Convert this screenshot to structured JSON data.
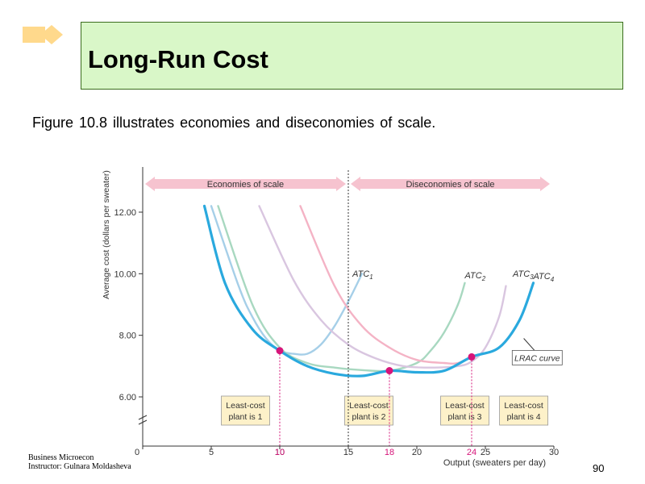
{
  "slide": {
    "title": "Long-Run Cost",
    "subtitle": "Figure 10.8 illustrates economies and diseconomies of scale.",
    "footer_line1": "Business Microecon",
    "footer_line2": "Instructor: Gulnara Moldasheva",
    "page_number": "90",
    "colors": {
      "title_bg": "#d9f7c8",
      "title_border": "#3b6d1e",
      "diamond": "#ffd98c"
    }
  },
  "chart_data": {
    "type": "line",
    "xlabel": "Output (sweaters per day)",
    "ylabel": "Average cost (dollars per sweater)",
    "xlim": [
      0,
      30
    ],
    "ylim": [
      5.5,
      13.5
    ],
    "x_ticks": [
      0,
      5,
      10,
      15,
      20,
      25,
      30
    ],
    "y_ticks": [
      6,
      8,
      10,
      12
    ],
    "y_tick_labels": [
      "6.00",
      "8.00",
      "10.00",
      "12.00"
    ],
    "highlight_x_ticks": [
      "10",
      "18",
      "24"
    ],
    "series": [
      {
        "name": "ATC",
        "sub": "1",
        "color": "#a6cfe8",
        "points": [
          [
            5,
            12.2
          ],
          [
            7,
            9.6
          ],
          [
            8,
            8.6
          ],
          [
            9,
            7.9
          ],
          [
            10,
            7.5
          ],
          [
            11,
            7.4
          ],
          [
            12,
            7.4
          ],
          [
            13,
            7.7
          ],
          [
            14,
            8.3
          ],
          [
            15,
            9.1
          ],
          [
            16,
            10.0
          ]
        ]
      },
      {
        "name": "ATC",
        "sub": "2",
        "color": "#a8d8c0",
        "points": [
          [
            5.5,
            12.2
          ],
          [
            8,
            9.0
          ],
          [
            10,
            7.6
          ],
          [
            12,
            7.1
          ],
          [
            14,
            6.95
          ],
          [
            16,
            6.87
          ],
          [
            18,
            6.85
          ],
          [
            20,
            7.1
          ],
          [
            21,
            7.5
          ],
          [
            22,
            8.1
          ],
          [
            23,
            9.0
          ],
          [
            23.5,
            9.7
          ]
        ]
      },
      {
        "name": "ATC",
        "sub": "3",
        "color": "#d9c6e0",
        "points": [
          [
            8.5,
            12.2
          ],
          [
            11,
            9.8
          ],
          [
            13,
            8.5
          ],
          [
            15,
            7.7
          ],
          [
            17,
            7.25
          ],
          [
            19,
            7.0
          ],
          [
            21,
            6.95
          ],
          [
            23,
            7.0
          ],
          [
            24,
            7.15
          ],
          [
            25,
            7.6
          ],
          [
            26,
            8.6
          ],
          [
            26.5,
            9.6
          ]
        ]
      },
      {
        "name": "ATC",
        "sub": "4",
        "color": "#f4b3c5",
        "points": [
          [
            11.5,
            12.2
          ],
          [
            14,
            9.6
          ],
          [
            16,
            8.3
          ],
          [
            18,
            7.6
          ],
          [
            20,
            7.2
          ],
          [
            22,
            7.1
          ],
          [
            23,
            7.1
          ],
          [
            24,
            7.3
          ]
        ]
      },
      {
        "name": "LRAC curve",
        "color": "#2aa9de",
        "points": [
          [
            4.5,
            12.2
          ],
          [
            6,
            9.7
          ],
          [
            8,
            8.2
          ],
          [
            10,
            7.5
          ],
          [
            12,
            7.0
          ],
          [
            14,
            6.75
          ],
          [
            16,
            6.68
          ],
          [
            18,
            6.85
          ],
          [
            20,
            6.8
          ],
          [
            22,
            6.85
          ],
          [
            24,
            7.3
          ],
          [
            26,
            7.6
          ],
          [
            27.5,
            8.5
          ],
          [
            28.5,
            9.7
          ]
        ]
      }
    ],
    "least_cost_points": [
      {
        "x": 10,
        "y": 7.5
      },
      {
        "x": 18,
        "y": 6.85
      },
      {
        "x": 24,
        "y": 7.3
      }
    ],
    "divider_x": 15,
    "economies_label": "Economies of scale",
    "diseconomies_label": "Diseconomies of scale",
    "plant_boxes": [
      {
        "line1": "Least-cost",
        "line2": "plant is 1"
      },
      {
        "line1": "Least-cost",
        "line2": "plant is 2"
      },
      {
        "line1": "Least-cost",
        "line2": "plant is 3"
      },
      {
        "line1": "Least-cost",
        "line2": "plant is 4"
      }
    ],
    "lrac_callout": "LRAC curve",
    "colors": {
      "point": "#d6157a",
      "box_bg": "#fdf1c9",
      "arrow": "#f6c3cf",
      "axis": "#333333"
    }
  }
}
